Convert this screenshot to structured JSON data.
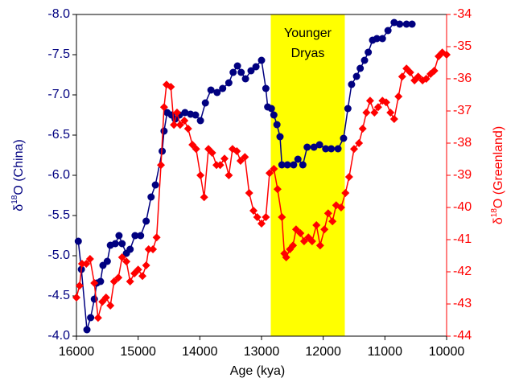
{
  "chart_data": {
    "type": "line",
    "xlabel": "Age (kya)",
    "ylabel": [
      "δ",
      "18",
      "O (China)"
    ],
    "y2label": [
      "δ",
      "18",
      "O (Greenland)"
    ],
    "xlim": [
      16000,
      10000
    ],
    "xticks": [
      16000,
      15000,
      14000,
      13000,
      12000,
      11000,
      10000
    ],
    "ylim": [
      -4,
      -8
    ],
    "yticks": [
      {
        "value": -8,
        "label": "-8.0"
      },
      -7.5,
      {
        "value": -7,
        "label": "-7.0"
      },
      -6.5,
      {
        "value": -6,
        "label": "-6.0"
      },
      -5.5,
      {
        "value": -5,
        "label": "-5.0"
      },
      -4.5,
      {
        "value": -4,
        "label": "-4.0"
      }
    ],
    "y2lim": [
      -44,
      -34
    ],
    "y2ticks": [
      -34,
      -35,
      -36,
      -37,
      -38,
      -39,
      -40,
      -41,
      -42,
      -43,
      -44
    ],
    "y_color": "#000080",
    "y2_color": "#ff0000",
    "annotation": {
      "lines": [
        "Younger",
        "Dryas"
      ],
      "span": [
        12850,
        11650
      ],
      "color": "#ffff00"
    },
    "series": [
      {
        "color": "#000080",
        "marker": "circle",
        "axis": "y",
        "x": [
          15970,
          15920,
          15830,
          15770,
          15710,
          15670,
          15610,
          15570,
          15500,
          15450,
          15370,
          15310,
          15260,
          15190,
          15130,
          15050,
          14960,
          14870,
          14790,
          14720,
          14610,
          14580,
          14530,
          14460,
          14400,
          14330,
          14240,
          14150,
          14070,
          13990,
          13910,
          13820,
          13720,
          13630,
          13530,
          13460,
          13390,
          13330,
          13260,
          13170,
          13090,
          13000,
          12930,
          12900,
          12840,
          12800,
          12750,
          12700,
          12670,
          12580,
          12480,
          12410,
          12330,
          12260,
          12150,
          12060,
          11960,
          11870,
          11760,
          11670,
          11600,
          11540,
          11460,
          11400,
          11330,
          11270,
          11200,
          11130,
          11040,
          10950,
          10850,
          10760,
          10650,
          10560
        ],
        "values": [
          -5.18,
          -4.83,
          -4.08,
          -4.23,
          -4.46,
          -4.66,
          -4.68,
          -4.88,
          -4.93,
          -5.13,
          -5.15,
          -5.25,
          -5.15,
          -5.03,
          -5.08,
          -5.25,
          -5.25,
          -5.43,
          -5.73,
          -5.88,
          -6.3,
          -6.55,
          -6.78,
          -6.75,
          -6.7,
          -6.75,
          -6.78,
          -6.76,
          -6.75,
          -6.68,
          -6.9,
          -7.06,
          -7.03,
          -7.08,
          -7.15,
          -7.28,
          -7.36,
          -7.28,
          -7.2,
          -7.3,
          -7.35,
          -7.43,
          -7.08,
          -6.85,
          -6.83,
          -6.75,
          -6.63,
          -6.48,
          -6.13,
          -6.13,
          -6.13,
          -6.2,
          -6.13,
          -6.35,
          -6.35,
          -6.38,
          -6.33,
          -6.33,
          -6.33,
          -6.46,
          -6.83,
          -7.13,
          -7.23,
          -7.33,
          -7.43,
          -7.53,
          -7.68,
          -7.7,
          -7.7,
          -7.8,
          -7.9,
          -7.88,
          -7.88,
          -7.88
        ]
      },
      {
        "color": "#ff0000",
        "marker": "diamond",
        "axis": "y2",
        "x": [
          16000,
          15950,
          15910,
          15840,
          15780,
          15710,
          15650,
          15580,
          15520,
          15450,
          15390,
          15320,
          15260,
          15190,
          15130,
          15060,
          15000,
          14930,
          14870,
          14830,
          14760,
          14700,
          14630,
          14580,
          14540,
          14470,
          14420,
          14370,
          14320,
          14250,
          14190,
          14120,
          14060,
          13990,
          13930,
          13860,
          13800,
          13730,
          13670,
          13600,
          13530,
          13470,
          13400,
          13340,
          13270,
          13200,
          13130,
          13070,
          13000,
          12930,
          12870,
          12800,
          12740,
          12670,
          12630,
          12600,
          12540,
          12490,
          12440,
          12370,
          12310,
          12240,
          12180,
          12110,
          12050,
          11980,
          11920,
          11850,
          11790,
          11710,
          11640,
          11580,
          11500,
          11420,
          11360,
          11300,
          11240,
          11170,
          11110,
          11040,
          10980,
          10910,
          10850,
          10780,
          10720,
          10650,
          10590,
          10520,
          10460,
          10390,
          10330,
          10260,
          10200,
          10130,
          10070,
          10000
        ],
        "values": [
          -42.8,
          -42.43,
          -41.75,
          -41.75,
          -41.6,
          -42.35,
          -43.43,
          -42.93,
          -42.8,
          -43.05,
          -42.3,
          -42.18,
          -41.55,
          -41.68,
          -42.3,
          -42.05,
          -41.93,
          -42.13,
          -41.8,
          -41.3,
          -41.3,
          -40.93,
          -38.68,
          -36.88,
          -36.18,
          -36.25,
          -37.43,
          -37.05,
          -37.43,
          -37.3,
          -37.55,
          -38.05,
          -38.18,
          -39,
          -39.68,
          -38.18,
          -38.3,
          -38.68,
          -38.68,
          -38.48,
          -39,
          -38.18,
          -38.25,
          -38.55,
          -38.43,
          -39.55,
          -40.1,
          -40.3,
          -40.5,
          -40.3,
          -38.93,
          -38.8,
          -39.43,
          -40.3,
          -41.43,
          -41.55,
          -41.3,
          -41.18,
          -40.68,
          -40.8,
          -41.05,
          -40.93,
          -41.05,
          -40.55,
          -41.18,
          -40.68,
          -40.18,
          -40.43,
          -39.93,
          -40,
          -39.55,
          -39.05,
          -38.18,
          -38,
          -37.55,
          -37.05,
          -36.68,
          -37.05,
          -36.88,
          -36.68,
          -36.73,
          -37.05,
          -37.25,
          -36.55,
          -35.93,
          -35.68,
          -35.8,
          -36.05,
          -35.93,
          -36.05,
          -36,
          -35.85,
          -35.75,
          -35.3,
          -35.18,
          -35.25
        ]
      }
    ]
  }
}
